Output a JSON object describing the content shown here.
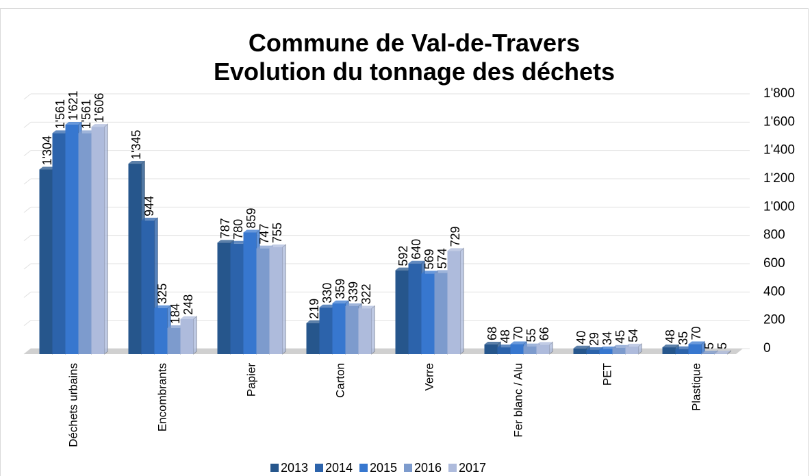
{
  "chart_data": {
    "type": "bar",
    "title": "Commune de Val-de-Travers",
    "subtitle": "Evolution du tonnage des déchets",
    "categories": [
      "Déchets urbains",
      "Encombrants",
      "Papier",
      "Carton",
      "Verre",
      "Fer blanc / Alu",
      "PET",
      "Plastique"
    ],
    "series": [
      {
        "name": "2013",
        "color": "#26568c",
        "values": [
          1304,
          1345,
          787,
          219,
          592,
          68,
          40,
          48
        ],
        "value_labels": [
          "1'304",
          "1'345",
          "787",
          "219",
          "592",
          "68",
          "40",
          "48"
        ]
      },
      {
        "name": "2014",
        "color": "#2c63ab",
        "values": [
          1561,
          944,
          780,
          330,
          640,
          48,
          29,
          35
        ],
        "value_labels": [
          "1'561",
          "944",
          "780",
          "330",
          "640",
          "48",
          "29",
          "35"
        ]
      },
      {
        "name": "2015",
        "color": "#3777cf",
        "values": [
          1621,
          325,
          859,
          359,
          569,
          70,
          34,
          70
        ],
        "value_labels": [
          "1'621",
          "325",
          "859",
          "359",
          "569",
          "70",
          "34",
          "70"
        ]
      },
      {
        "name": "2016",
        "color": "#7d9bcd",
        "values": [
          1561,
          184,
          747,
          339,
          574,
          55,
          45,
          5
        ],
        "value_labels": [
          "1'561",
          "184",
          "747",
          "339",
          "574",
          "55",
          "45",
          "5"
        ]
      },
      {
        "name": "2017",
        "color": "#aebbdc",
        "values": [
          1606,
          248,
          755,
          322,
          729,
          66,
          54,
          5
        ],
        "value_labels": [
          "1'606",
          "248",
          "755",
          "322",
          "729",
          "66",
          "54",
          "5"
        ]
      }
    ],
    "ylim": [
      0,
      1800
    ],
    "yticks": [
      0,
      200,
      400,
      600,
      800,
      {
        "value": 1000,
        "label": "1'000"
      },
      {
        "value": 1200,
        "label": "1'200"
      },
      {
        "value": 1400,
        "label": "1'400"
      },
      {
        "value": 1600,
        "label": "1'600"
      },
      {
        "value": 1800,
        "label": "1'800"
      }
    ],
    "grid": true,
    "legend": "bottom"
  }
}
